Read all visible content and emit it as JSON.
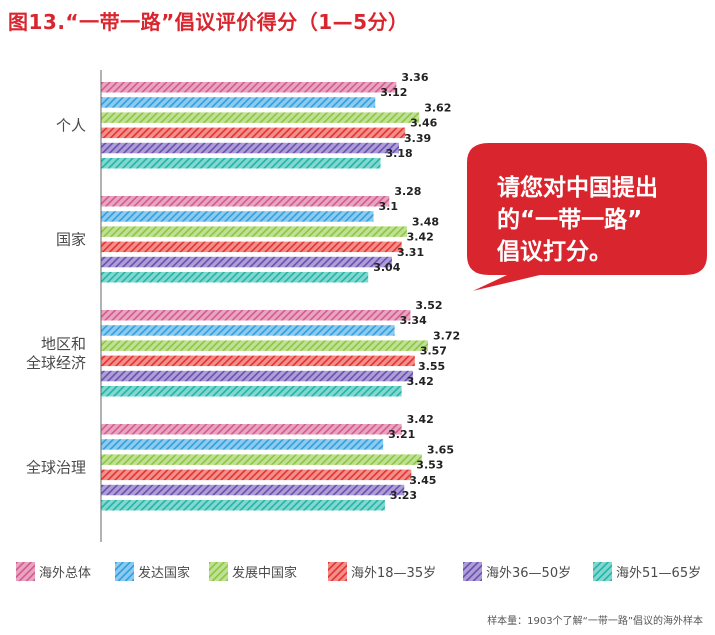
{
  "title": "图13.“一带一路”倡议评价得分（1—5分）",
  "callout": {
    "lines": [
      "请您对中国提出",
      "的“一带一路”",
      "倡议打分。"
    ],
    "color": "#d9262e"
  },
  "footnote": "样本量：1903个了解“一带一路”倡议的海外样本",
  "chart_data": {
    "type": "bar",
    "orientation": "horizontal",
    "categories": [
      "个人",
      "国家",
      "地区和\n全球经济",
      "全球治理"
    ],
    "series": [
      {
        "name": "海外总体",
        "color": "#d45a8e",
        "values": [
          3.36,
          3.28,
          3.52,
          3.42
        ]
      },
      {
        "name": "发达国家",
        "color": "#2f9fe0",
        "values": [
          3.12,
          3.1,
          3.34,
          3.21
        ]
      },
      {
        "name": "发展中国家",
        "color": "#8cc63f",
        "values": [
          3.62,
          3.48,
          3.72,
          3.65
        ]
      },
      {
        "name": "海外18—35岁",
        "color": "#e5322d",
        "values": [
          3.46,
          3.42,
          3.57,
          3.53
        ]
      },
      {
        "name": "海外36—50岁",
        "color": "#6a4fb3",
        "values": [
          3.39,
          3.31,
          3.55,
          3.45
        ]
      },
      {
        "name": "海外51—65岁",
        "color": "#1fb5a8",
        "values": [
          3.18,
          3.04,
          3.42,
          3.23
        ]
      }
    ],
    "value_labels": [
      [
        "3.36",
        "3.28",
        "3.52",
        "3.42"
      ],
      [
        "3.12",
        "3.1",
        "3.34",
        "3.21"
      ],
      [
        "3.62",
        "3.48",
        "3.72",
        "3.65"
      ],
      [
        "3.46",
        "3.42",
        "3.57",
        "3.53"
      ],
      [
        "3.39",
        "3.31",
        "3.55",
        "3.45"
      ],
      [
        "3.18",
        "3.04",
        "3.42",
        "3.23"
      ]
    ],
    "xlim": [
      0,
      3.72
    ],
    "legend_position": "bottom",
    "grid": false
  }
}
